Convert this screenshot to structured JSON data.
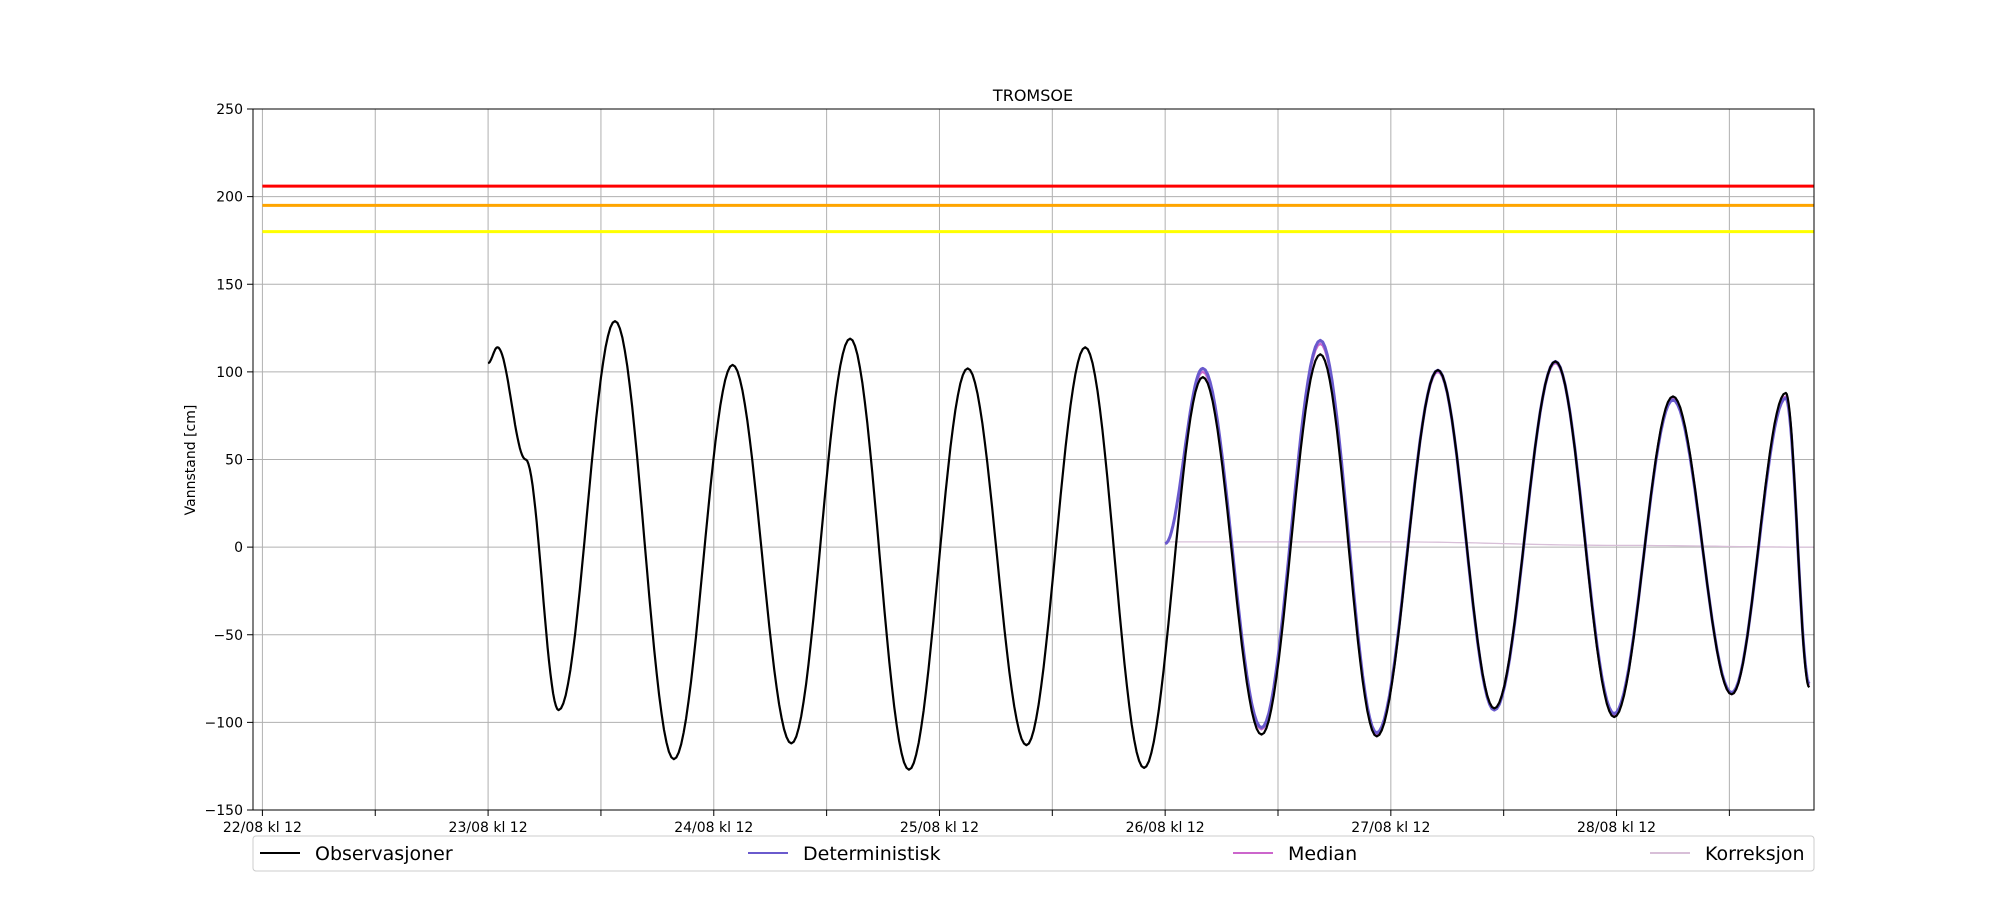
{
  "chart_data": {
    "type": "line",
    "title": "TROMSOE",
    "xlabel": "",
    "ylabel": "Vannstand [cm]",
    "ylim": [
      -150,
      250
    ],
    "yticks": [
      -150,
      -100,
      -50,
      0,
      50,
      100,
      150,
      200,
      250
    ],
    "xlim": [
      "2023-08-22T11:00",
      "2023-08-29T09:00"
    ],
    "xticks": [
      {
        "t": "2023-08-22T12:00",
        "label": "22/08 kl 12"
      },
      {
        "t": "2023-08-23T00:00",
        "label": ""
      },
      {
        "t": "2023-08-23T12:00",
        "label": "23/08 kl 12"
      },
      {
        "t": "2023-08-24T00:00",
        "label": ""
      },
      {
        "t": "2023-08-24T12:00",
        "label": "24/08 kl 12"
      },
      {
        "t": "2023-08-25T00:00",
        "label": ""
      },
      {
        "t": "2023-08-25T12:00",
        "label": "25/08 kl 12"
      },
      {
        "t": "2023-08-26T00:00",
        "label": ""
      },
      {
        "t": "2023-08-26T12:00",
        "label": "26/08 kl 12"
      },
      {
        "t": "2023-08-27T00:00",
        "label": ""
      },
      {
        "t": "2023-08-27T12:00",
        "label": "27/08 kl 12"
      },
      {
        "t": "2023-08-28T00:00",
        "label": ""
      },
      {
        "t": "2023-08-28T12:00",
        "label": "28/08 kl 12"
      },
      {
        "t": "2023-08-29T00:00",
        "label": ""
      }
    ],
    "grid": true,
    "legend_position": "bottom",
    "thresholds": [
      {
        "value": 206,
        "color": "#ff0000"
      },
      {
        "value": 195,
        "color": "#ffa500"
      },
      {
        "value": 180,
        "color": "#ffff00"
      }
    ],
    "series": [
      {
        "name": "Observasjoner",
        "color": "#000000",
        "points": [
          {
            "t": "2023-08-23T12:00",
            "v": 105
          },
          {
            "t": "2023-08-23T13:00",
            "v": 114
          },
          {
            "t": "2023-08-23T16:00",
            "v": 50
          },
          {
            "t": "2023-08-23T19:30",
            "v": -93
          },
          {
            "t": "2023-08-24T01:30",
            "v": 129
          },
          {
            "t": "2023-08-24T07:45",
            "v": -121
          },
          {
            "t": "2023-08-24T14:00",
            "v": 104
          },
          {
            "t": "2023-08-24T20:15",
            "v": -112
          },
          {
            "t": "2023-08-25T02:30",
            "v": 119
          },
          {
            "t": "2023-08-25T08:45",
            "v": -127
          },
          {
            "t": "2023-08-25T15:00",
            "v": 102
          },
          {
            "t": "2023-08-25T21:15",
            "v": -113
          },
          {
            "t": "2023-08-26T03:30",
            "v": 114
          },
          {
            "t": "2023-08-26T09:45",
            "v": -126
          },
          {
            "t": "2023-08-26T16:00",
            "v": 97
          },
          {
            "t": "2023-08-26T22:15",
            "v": -107
          },
          {
            "t": "2023-08-27T04:30",
            "v": 110
          },
          {
            "t": "2023-08-27T10:30",
            "v": -108
          },
          {
            "t": "2023-08-27T17:00",
            "v": 101
          },
          {
            "t": "2023-08-27T23:00",
            "v": -92
          },
          {
            "t": "2023-08-28T05:30",
            "v": 106
          },
          {
            "t": "2023-08-28T11:45",
            "v": -97
          },
          {
            "t": "2023-08-28T18:00",
            "v": 86
          },
          {
            "t": "2023-08-29T00:15",
            "v": -84
          },
          {
            "t": "2023-08-29T06:00",
            "v": 88
          },
          {
            "t": "2023-08-29T08:30",
            "v": -80
          }
        ]
      },
      {
        "name": "Deterministisk",
        "color": "#6a5acd",
        "points": [
          {
            "t": "2023-08-26T12:00",
            "v": 2
          },
          {
            "t": "2023-08-26T16:00",
            "v": 102
          },
          {
            "t": "2023-08-26T22:15",
            "v": -103
          },
          {
            "t": "2023-08-27T04:30",
            "v": 118
          },
          {
            "t": "2023-08-27T10:30",
            "v": -106
          },
          {
            "t": "2023-08-27T17:00",
            "v": 101
          },
          {
            "t": "2023-08-27T23:00",
            "v": -93
          },
          {
            "t": "2023-08-28T05:30",
            "v": 106
          },
          {
            "t": "2023-08-28T11:45",
            "v": -95
          },
          {
            "t": "2023-08-28T18:00",
            "v": 84
          },
          {
            "t": "2023-08-29T00:15",
            "v": -83
          },
          {
            "t": "2023-08-29T06:00",
            "v": 85
          },
          {
            "t": "2023-08-29T08:30",
            "v": -78
          }
        ]
      },
      {
        "name": "Median",
        "color": "#cc66cc",
        "points": [
          {
            "t": "2023-08-26T12:00",
            "v": 2
          },
          {
            "t": "2023-08-26T16:00",
            "v": 100
          },
          {
            "t": "2023-08-26T22:15",
            "v": -104
          },
          {
            "t": "2023-08-27T04:30",
            "v": 116
          },
          {
            "t": "2023-08-27T10:30",
            "v": -107
          },
          {
            "t": "2023-08-27T17:00",
            "v": 100
          },
          {
            "t": "2023-08-27T23:00",
            "v": -92
          },
          {
            "t": "2023-08-28T05:30",
            "v": 105
          },
          {
            "t": "2023-08-28T11:45",
            "v": -96
          },
          {
            "t": "2023-08-28T18:00",
            "v": 85
          },
          {
            "t": "2023-08-29T00:15",
            "v": -84
          },
          {
            "t": "2023-08-29T06:00",
            "v": 86
          },
          {
            "t": "2023-08-29T08:30",
            "v": -79
          }
        ]
      },
      {
        "name": "Korreksjon",
        "color": "#d8bfd8",
        "points": [
          {
            "t": "2023-08-26T12:00",
            "v": 3
          },
          {
            "t": "2023-08-27T12:00",
            "v": 3
          },
          {
            "t": "2023-08-28T12:00",
            "v": 1
          },
          {
            "t": "2023-08-29T09:00",
            "v": 0
          }
        ]
      }
    ]
  }
}
